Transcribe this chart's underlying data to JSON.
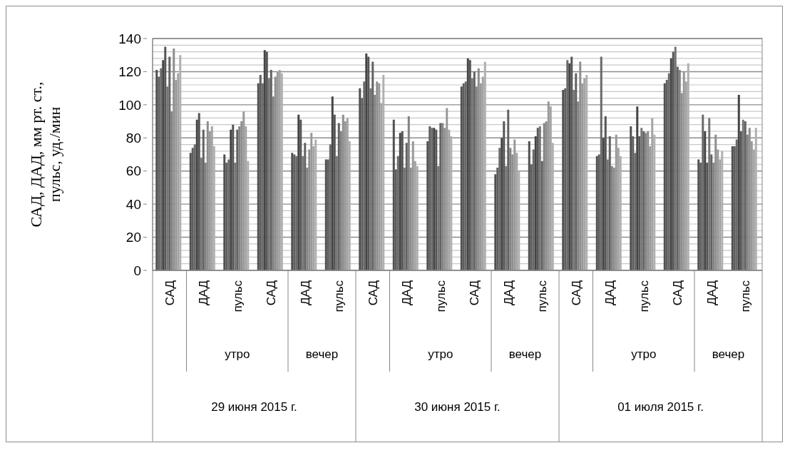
{
  "chart_data": {
    "type": "bar",
    "ylabel": "САД, ДАД, мм рт. ст.,\nпульс, уд./мин",
    "categories": [
      "САД",
      "ДАД",
      "пульс",
      "САД",
      "ДАД",
      "пульс",
      "САД",
      "ДАД",
      "пульс",
      "САД",
      "ДАД",
      "пульс",
      "САД",
      "ДАД",
      "пульс",
      "САД",
      "ДАД",
      "пульс"
    ],
    "annotations": [
      "утро",
      "вечер",
      "утро",
      "вечер",
      "утро",
      "вечер",
      "29 июня 2015 г.",
      "30 июня 2015 г.",
      "01 июля 2015 г."
    ],
    "ylim": [
      0,
      140
    ],
    "yticks": [
      0,
      {
        "value": 4,
        "label": null
      },
      {
        "value": 8,
        "label": null
      },
      {
        "value": 12,
        "label": null
      },
      {
        "value": 16,
        "label": null
      },
      20,
      {
        "value": 24,
        "label": null
      },
      {
        "value": 28,
        "label": null
      },
      {
        "value": 32,
        "label": null
      },
      {
        "value": 36,
        "label": null
      },
      40,
      {
        "value": 44,
        "label": null
      },
      {
        "value": 48,
        "label": null
      },
      {
        "value": 52,
        "label": null
      },
      {
        "value": 56,
        "label": null
      },
      60,
      {
        "value": 64,
        "label": null
      },
      {
        "value": 68,
        "label": null
      },
      {
        "value": 72,
        "label": null
      },
      {
        "value": 76,
        "label": null
      },
      80,
      {
        "value": 84,
        "label": null
      },
      {
        "value": 88,
        "label": null
      },
      {
        "value": 92,
        "label": null
      },
      {
        "value": 96,
        "label": null
      },
      100,
      {
        "value": 104,
        "label": null
      },
      {
        "value": 108,
        "label": null
      },
      {
        "value": 112,
        "label": null
      },
      {
        "value": 116,
        "label": null
      },
      120,
      {
        "value": 124,
        "label": null
      },
      {
        "value": 128,
        "label": null
      },
      {
        "value": 132,
        "label": null
      },
      {
        "value": 136,
        "label": null
      },
      140
    ],
    "grid": "y",
    "series": [
      {
        "color": "#505050",
        "values": [
          121,
          71,
          70,
          113,
          71,
          67,
          110,
          91,
          78,
          111,
          58,
          78,
          109,
          69,
          87,
          113,
          67,
          75
        ]
      },
      {
        "color": "#5e5e5e",
        "values": [
          117,
          74,
          65,
          118,
          70,
          67,
          104,
          61,
          87,
          113,
          62,
          64,
          110,
          70,
          81,
          115,
          65,
          75
        ]
      },
      {
        "color": "#6a6a6a",
        "values": [
          122,
          76,
          67,
          113,
          69,
          76,
          114,
          69,
          86,
          114,
          74,
          73,
          127,
          129,
          71,
          119,
          94,
          79
        ]
      },
      {
        "color": "#444444",
        "values": [
          127,
          91,
          85,
          133,
          94,
          105,
          131,
          83,
          86,
          128,
          80,
          81,
          125,
          80,
          99,
          128,
          84,
          106
        ]
      },
      {
        "color": "#565656",
        "values": [
          135,
          95,
          88,
          132,
          91,
          94,
          129,
          84,
          85,
          127,
          90,
          86,
          129,
          93,
          81,
          132,
          65,
          84
        ]
      },
      {
        "color": "#767676",
        "values": [
          111,
          68,
          65,
          116,
          69,
          69,
          110,
          62,
          63,
          116,
          63,
          87,
          109,
          67,
          86,
          135,
          92,
          91
        ]
      },
      {
        "color": "#626262",
        "values": [
          129,
          85,
          85,
          121,
          77,
          89,
          126,
          77,
          89,
          120,
          97,
          66,
          119,
          81,
          84,
          123,
          70,
          90
        ]
      },
      {
        "color": "#828282",
        "values": [
          96,
          65,
          87,
          105,
          62,
          84,
          106,
          93,
          89,
          111,
          74,
          89,
          102,
          63,
          83,
          121,
          65,
          82
        ]
      },
      {
        "color": "#8e8e8e",
        "values": [
          134,
          90,
          90,
          117,
          73,
          94,
          114,
          62,
          86,
          122,
          70,
          90,
          126,
          62,
          84,
          107,
          82,
          86
        ]
      },
      {
        "color": "#999999",
        "values": [
          115,
          84,
          96,
          120,
          83,
          90,
          113,
          78,
          98,
          113,
          79,
          102,
          113,
          82,
          75,
          120,
          73,
          78
        ]
      },
      {
        "color": "#a4a4a4",
        "values": [
          119,
          87,
          87,
          121,
          75,
          92,
          101,
          66,
          85,
          117,
          71,
          99,
          116,
          74,
          92,
          114,
          67,
          73
        ]
      },
      {
        "color": "#b0b0b0",
        "values": [
          130,
          75,
          66,
          119,
          79,
          78,
          118,
          63,
          81,
          126,
          60,
          77,
          118,
          69,
          82,
          125,
          72,
          86
        ]
      }
    ]
  }
}
